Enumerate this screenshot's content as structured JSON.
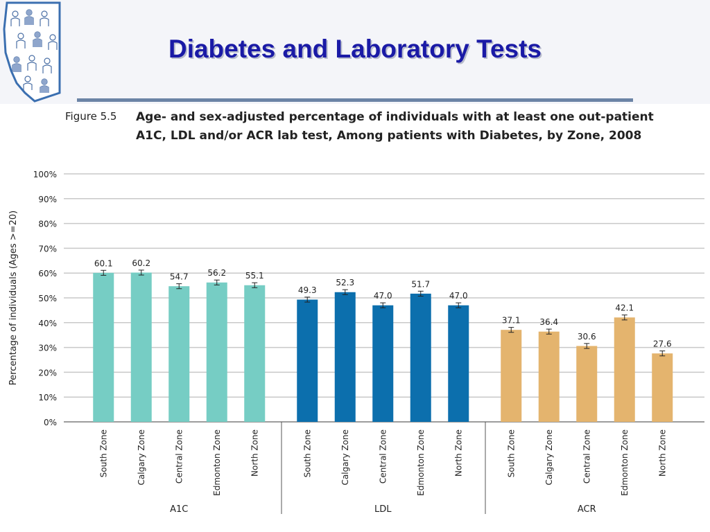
{
  "slide": {
    "title": "Diabetes and Laboratory Tests"
  },
  "figure": {
    "label": "Figure 5.5",
    "title_line1": "Age- and sex-adjusted percentage of individuals with at least one out-patient",
    "title_line2": "A1C, LDL and/or ACR lab test, Among patients with Diabetes, by Zone, 2008"
  },
  "colors": {
    "A1C": "#76cdc4",
    "LDL": "#0c6fad",
    "ACR": "#e4b46e",
    "title": "#1a1aa6",
    "rule": "#6b84a6"
  },
  "chart_data": {
    "type": "bar",
    "title": "Age- and sex-adjusted percentage of individuals with at least one out-patient A1C, LDL and/or ACR lab test, Among patients with Diabetes, by Zone, 2008",
    "ylabel": "Percentage of individuals  (Ages >=20)",
    "xlabel": "",
    "ylim": [
      0,
      100
    ],
    "yticks": [
      "0%",
      "10%",
      "20%",
      "30%",
      "40%",
      "50%",
      "60%",
      "70%",
      "80%",
      "90%",
      "100%"
    ],
    "grid": true,
    "error_bars": true,
    "categories": [
      "South Zone",
      "Calgary Zone",
      "Central Zone",
      "Edmonton Zone",
      "North Zone"
    ],
    "series": [
      {
        "name": "A1C",
        "values": [
          60.1,
          60.2,
          54.7,
          56.2,
          55.1
        ],
        "labels": [
          "60.1",
          "60.2",
          "54.7",
          "56.2",
          "55.1"
        ]
      },
      {
        "name": "LDL",
        "values": [
          49.3,
          52.3,
          47.0,
          51.7,
          47.0
        ],
        "labels": [
          "49.3",
          "52.3",
          "47.0",
          "51.7",
          "47.0"
        ]
      },
      {
        "name": "ACR",
        "values": [
          37.1,
          36.4,
          30.6,
          42.1,
          27.6
        ],
        "labels": [
          "37.1",
          "36.4",
          "30.6",
          "42.1",
          "27.6"
        ]
      }
    ]
  }
}
